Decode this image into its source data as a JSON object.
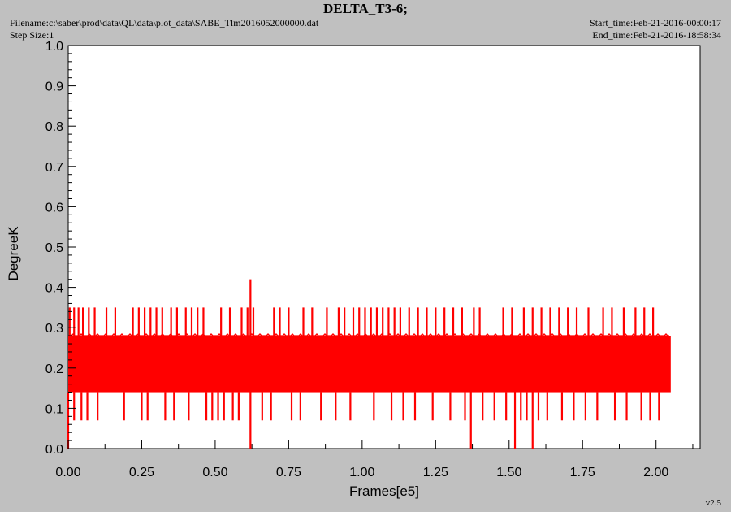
{
  "header": {
    "title": "DELTA_T3-6;",
    "filename": "Filename:c:\\saber\\prod\\data\\QL\\data\\plot_data\\SABE_Tlm2016052000000.dat",
    "step_size": "Step Size:1",
    "start_time": "Start_time:Feb-21-2016-00:00:17",
    "end_time": "End_time:Feb-21-2016-18:58:34",
    "version": "v2.5"
  },
  "colors": {
    "background": "#c0c0c0",
    "plot_bg": "#ffffff",
    "series": "#ff0000"
  },
  "chart_data": {
    "type": "line",
    "title": "DELTA_T3-6;",
    "xlabel": "Frames[e5]",
    "ylabel": "DegreeK",
    "xlim": [
      0,
      2.15
    ],
    "ylim": [
      0,
      1.0
    ],
    "x_ticks": [
      "0.00",
      "0.25",
      "0.50",
      "0.75",
      "1.00",
      "1.25",
      "1.50",
      "1.75",
      "2.00"
    ],
    "y_ticks": [
      "0.0",
      "0.1",
      "0.2",
      "0.3",
      "0.4",
      "0.5",
      "0.6",
      "0.7",
      "0.8",
      "0.9",
      "1.0"
    ],
    "grid": false,
    "series": [
      {
        "color": "#ff0000",
        "x_range": [
          0,
          2.05
        ],
        "band_low": 0.14,
        "band_high": 0.28,
        "typical_range": [
          0.14,
          0.28
        ],
        "spikes_high": [
          {
            "x": 0.005,
            "y": 0.35
          },
          {
            "x": 0.02,
            "y": 0.35
          },
          {
            "x": 0.035,
            "y": 0.35
          },
          {
            "x": 0.05,
            "y": 0.35
          },
          {
            "x": 0.07,
            "y": 0.35
          },
          {
            "x": 0.09,
            "y": 0.35
          },
          {
            "x": 0.13,
            "y": 0.35
          },
          {
            "x": 0.16,
            "y": 0.35
          },
          {
            "x": 0.22,
            "y": 0.35
          },
          {
            "x": 0.24,
            "y": 0.35
          },
          {
            "x": 0.26,
            "y": 0.35
          },
          {
            "x": 0.28,
            "y": 0.35
          },
          {
            "x": 0.3,
            "y": 0.35
          },
          {
            "x": 0.32,
            "y": 0.35
          },
          {
            "x": 0.35,
            "y": 0.35
          },
          {
            "x": 0.37,
            "y": 0.35
          },
          {
            "x": 0.4,
            "y": 0.35
          },
          {
            "x": 0.42,
            "y": 0.35
          },
          {
            "x": 0.44,
            "y": 0.35
          },
          {
            "x": 0.46,
            "y": 0.35
          },
          {
            "x": 0.52,
            "y": 0.35
          },
          {
            "x": 0.55,
            "y": 0.35
          },
          {
            "x": 0.59,
            "y": 0.35
          },
          {
            "x": 0.61,
            "y": 0.35
          },
          {
            "x": 0.62,
            "y": 0.42
          },
          {
            "x": 0.63,
            "y": 0.35
          },
          {
            "x": 0.7,
            "y": 0.35
          },
          {
            "x": 0.72,
            "y": 0.35
          },
          {
            "x": 0.75,
            "y": 0.35
          },
          {
            "x": 0.8,
            "y": 0.35
          },
          {
            "x": 0.83,
            "y": 0.35
          },
          {
            "x": 0.88,
            "y": 0.35
          },
          {
            "x": 0.92,
            "y": 0.35
          },
          {
            "x": 0.94,
            "y": 0.35
          },
          {
            "x": 0.97,
            "y": 0.35
          },
          {
            "x": 0.99,
            "y": 0.35
          },
          {
            "x": 1.01,
            "y": 0.35
          },
          {
            "x": 1.03,
            "y": 0.35
          },
          {
            "x": 1.05,
            "y": 0.35
          },
          {
            "x": 1.07,
            "y": 0.35
          },
          {
            "x": 1.09,
            "y": 0.35
          },
          {
            "x": 1.11,
            "y": 0.35
          },
          {
            "x": 1.13,
            "y": 0.35
          },
          {
            "x": 1.16,
            "y": 0.35
          },
          {
            "x": 1.19,
            "y": 0.35
          },
          {
            "x": 1.22,
            "y": 0.35
          },
          {
            "x": 1.25,
            "y": 0.35
          },
          {
            "x": 1.28,
            "y": 0.35
          },
          {
            "x": 1.31,
            "y": 0.35
          },
          {
            "x": 1.34,
            "y": 0.35
          },
          {
            "x": 1.38,
            "y": 0.35
          },
          {
            "x": 1.4,
            "y": 0.35
          },
          {
            "x": 1.48,
            "y": 0.35
          },
          {
            "x": 1.51,
            "y": 0.35
          },
          {
            "x": 1.55,
            "y": 0.35
          },
          {
            "x": 1.58,
            "y": 0.35
          },
          {
            "x": 1.61,
            "y": 0.35
          },
          {
            "x": 1.64,
            "y": 0.35
          },
          {
            "x": 1.67,
            "y": 0.35
          },
          {
            "x": 1.7,
            "y": 0.35
          },
          {
            "x": 1.73,
            "y": 0.35
          },
          {
            "x": 1.77,
            "y": 0.35
          },
          {
            "x": 1.82,
            "y": 0.35
          },
          {
            "x": 1.85,
            "y": 0.35
          },
          {
            "x": 1.89,
            "y": 0.35
          },
          {
            "x": 1.93,
            "y": 0.35
          },
          {
            "x": 1.96,
            "y": 0.35
          },
          {
            "x": 1.99,
            "y": 0.35
          }
        ],
        "spikes_low": [
          {
            "x": 0.0,
            "y": 0.0
          },
          {
            "x": 0.02,
            "y": 0.07
          },
          {
            "x": 0.045,
            "y": 0.07
          },
          {
            "x": 0.065,
            "y": 0.07
          },
          {
            "x": 0.1,
            "y": 0.07
          },
          {
            "x": 0.19,
            "y": 0.07
          },
          {
            "x": 0.25,
            "y": 0.07
          },
          {
            "x": 0.27,
            "y": 0.07
          },
          {
            "x": 0.33,
            "y": 0.07
          },
          {
            "x": 0.36,
            "y": 0.07
          },
          {
            "x": 0.41,
            "y": 0.07
          },
          {
            "x": 0.47,
            "y": 0.07
          },
          {
            "x": 0.49,
            "y": 0.07
          },
          {
            "x": 0.51,
            "y": 0.07
          },
          {
            "x": 0.53,
            "y": 0.07
          },
          {
            "x": 0.56,
            "y": 0.07
          },
          {
            "x": 0.58,
            "y": 0.07
          },
          {
            "x": 0.62,
            "y": 0.0
          },
          {
            "x": 0.66,
            "y": 0.07
          },
          {
            "x": 0.69,
            "y": 0.07
          },
          {
            "x": 0.76,
            "y": 0.07
          },
          {
            "x": 0.79,
            "y": 0.07
          },
          {
            "x": 0.86,
            "y": 0.07
          },
          {
            "x": 0.91,
            "y": 0.07
          },
          {
            "x": 0.96,
            "y": 0.07
          },
          {
            "x": 1.04,
            "y": 0.07
          },
          {
            "x": 1.1,
            "y": 0.07
          },
          {
            "x": 1.14,
            "y": 0.07
          },
          {
            "x": 1.18,
            "y": 0.07
          },
          {
            "x": 1.24,
            "y": 0.07
          },
          {
            "x": 1.3,
            "y": 0.07
          },
          {
            "x": 1.35,
            "y": 0.07
          },
          {
            "x": 1.37,
            "y": 0.0
          },
          {
            "x": 1.41,
            "y": 0.07
          },
          {
            "x": 1.45,
            "y": 0.07
          },
          {
            "x": 1.49,
            "y": 0.07
          },
          {
            "x": 1.52,
            "y": 0.0
          },
          {
            "x": 1.54,
            "y": 0.07
          },
          {
            "x": 1.56,
            "y": 0.07
          },
          {
            "x": 1.58,
            "y": 0.0
          },
          {
            "x": 1.6,
            "y": 0.07
          },
          {
            "x": 1.63,
            "y": 0.07
          },
          {
            "x": 1.68,
            "y": 0.07
          },
          {
            "x": 1.72,
            "y": 0.07
          },
          {
            "x": 1.76,
            "y": 0.07
          },
          {
            "x": 1.8,
            "y": 0.07
          },
          {
            "x": 1.86,
            "y": 0.07
          },
          {
            "x": 1.9,
            "y": 0.07
          },
          {
            "x": 1.95,
            "y": 0.07
          },
          {
            "x": 1.98,
            "y": 0.07
          },
          {
            "x": 2.01,
            "y": 0.07
          }
        ]
      }
    ]
  }
}
